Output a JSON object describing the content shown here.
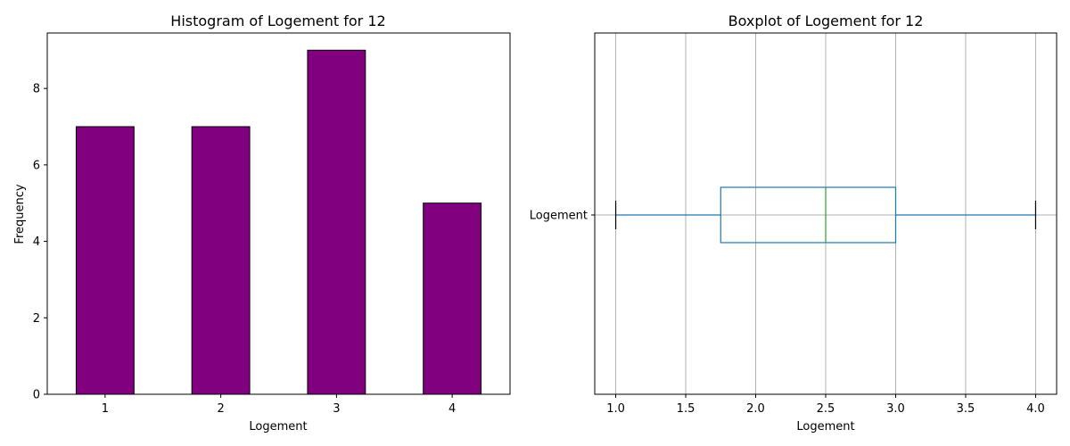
{
  "colors": {
    "bar_fill": "#800080",
    "bar_edge": "#000000",
    "box": "#1f77b4",
    "median": "#2ca02c",
    "grid": "#b0b0b0"
  },
  "chart_data": [
    {
      "type": "bar",
      "title": "Histogram of Logement for 12",
      "xlabel": "Logement",
      "ylabel": "Frequency",
      "categories": [
        "1",
        "2",
        "3",
        "4"
      ],
      "values": [
        7,
        7,
        9,
        5
      ],
      "ylim": [
        0,
        9.45
      ],
      "yticks": [
        0,
        2,
        4,
        6,
        8
      ],
      "grid": false
    },
    {
      "type": "boxplot",
      "title": "Boxplot of Logement for 12",
      "xlabel": "Logement",
      "category": "Logement",
      "orientation": "horizontal",
      "stats": {
        "whislo": 1.0,
        "q1": 1.75,
        "median": 2.5,
        "q3": 3.0,
        "whishi": 4.0
      },
      "xlim": [
        0.85,
        4.15
      ],
      "xticks": [
        "1.0",
        "1.5",
        "2.0",
        "2.5",
        "3.0",
        "3.5",
        "4.0"
      ],
      "grid": true
    }
  ]
}
